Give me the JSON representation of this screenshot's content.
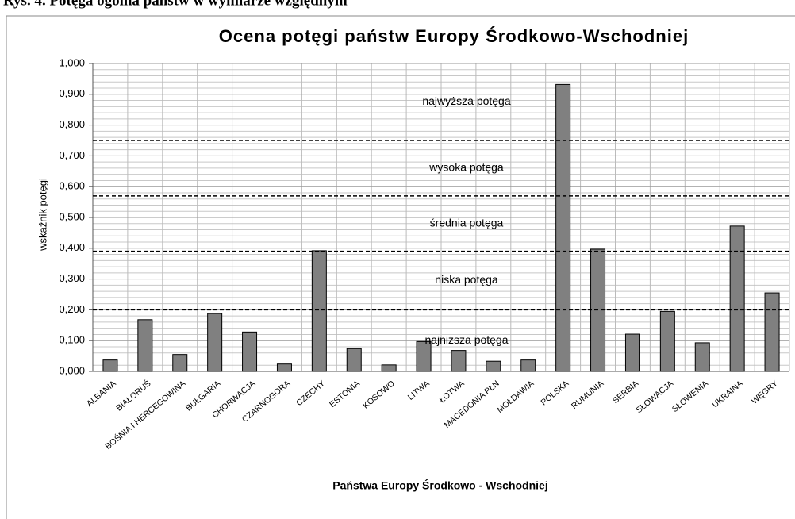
{
  "caption": "Rys. 4. Potęga ogólna państw w wymiarze względnym",
  "chart_data": {
    "type": "bar",
    "title": "Ocena potęgi państw Europy Środkowo-Wschodniej",
    "x_label": "Państwa Europy Środkowo - Wschodniej",
    "y_label": "wskaźnik potęgi",
    "categories": [
      "ALBANIA",
      "BIAŁORUŚ",
      "BOŚNIA I HERCEGOWINA",
      "BUŁGARIA",
      "CHORWACJA",
      "CZARNOGÓRA",
      "CZECHY",
      "ESTONIA",
      "KOSOWO",
      "LITWA",
      "ŁOTWA",
      "MACEDONIA PŁN",
      "MOŁDAWIA",
      "POLSKA",
      "RUMUNIA",
      "SERBIA",
      "SŁOWACJA",
      "SŁOWENIA",
      "UKRAINA",
      "WĘGRY"
    ],
    "values": [
      0.037,
      0.168,
      0.055,
      0.188,
      0.128,
      0.024,
      0.392,
      0.074,
      0.021,
      0.097,
      0.068,
      0.033,
      0.037,
      0.932,
      0.397,
      0.121,
      0.195,
      0.093,
      0.472,
      0.255
    ],
    "color": "#808080",
    "ylim": [
      0,
      1
    ],
    "yticks": [
      {
        "value": 0,
        "label": "0,000"
      },
      {
        "value": 0.1,
        "label": "0,100"
      },
      {
        "value": 0.2,
        "label": "0,200"
      },
      {
        "value": 0.3,
        "label": "0,300"
      },
      {
        "value": 0.4,
        "label": "0,400"
      },
      {
        "value": 0.5,
        "label": "0,500"
      },
      {
        "value": 0.6,
        "label": "0,600"
      },
      {
        "value": 0.7,
        "label": "0,700"
      },
      {
        "value": 0.8,
        "label": "0,800"
      },
      {
        "value": 0.9,
        "label": "0,900"
      },
      {
        "value": 1,
        "label": "1,000"
      }
    ],
    "grid": true,
    "thresholds": [
      0.75,
      0.57,
      0.39,
      0.2
    ],
    "zones": [
      "najwyższa potęga",
      "wysoka potęga",
      "średnia potęga",
      "niska potęga",
      "najniższa potęga"
    ]
  }
}
